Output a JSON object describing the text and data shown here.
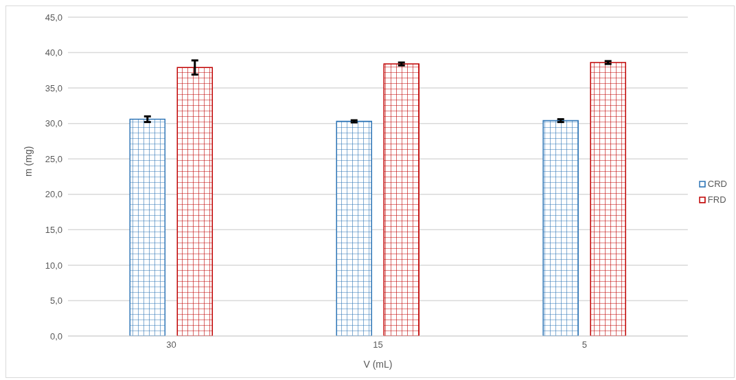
{
  "chart_data": {
    "type": "bar",
    "xlabel": "V (mL)",
    "ylabel": "m (mg)",
    "categories": [
      "30",
      "15",
      "5"
    ],
    "series": [
      {
        "name": "CRD",
        "color": "#2e75b6",
        "values": [
          30.6,
          30.3,
          30.4
        ],
        "errors": [
          0.4,
          0.15,
          0.2
        ]
      },
      {
        "name": "FRD",
        "color": "#c00000",
        "values": [
          37.9,
          38.4,
          38.6
        ],
        "errors": [
          1.0,
          0.2,
          0.2
        ]
      }
    ],
    "ylim": [
      0,
      45
    ],
    "yticks": [
      {
        "value": 0,
        "label": "0,0"
      },
      {
        "value": 5,
        "label": "5,0"
      },
      {
        "value": 10,
        "label": "10,0"
      },
      {
        "value": 15,
        "label": "15,0"
      },
      {
        "value": 20,
        "label": "20,0"
      },
      {
        "value": 25,
        "label": "25,0"
      },
      {
        "value": 30,
        "label": "30,0"
      },
      {
        "value": 35,
        "label": "35,0"
      },
      {
        "value": 40,
        "label": "40,0"
      },
      {
        "value": 45,
        "label": "45,0"
      }
    ],
    "grid": "y",
    "legend": "right"
  }
}
